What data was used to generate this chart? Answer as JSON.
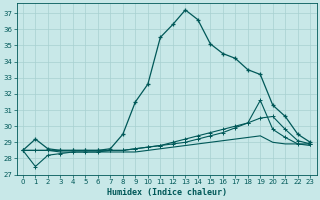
{
  "xlabel": "Humidex (Indice chaleur)",
  "bg_color": "#c8e8e8",
  "grid_color": "#a8d0d0",
  "line_color": "#005858",
  "xlim": [
    -0.5,
    23.5
  ],
  "ylim": [
    27,
    37.6
  ],
  "yticks": [
    27,
    28,
    29,
    30,
    31,
    32,
    33,
    34,
    35,
    36,
    37
  ],
  "xticks": [
    0,
    1,
    2,
    3,
    4,
    5,
    6,
    7,
    8,
    9,
    10,
    11,
    12,
    13,
    14,
    15,
    16,
    17,
    18,
    19,
    20,
    21,
    22,
    23
  ],
  "series": {
    "main": {
      "x": [
        0,
        1,
        2,
        3,
        4,
        5,
        6,
        7,
        8,
        9,
        10,
        11,
        12,
        13,
        14,
        15,
        16,
        17,
        18,
        19,
        20,
        21,
        22,
        23
      ],
      "y": [
        28.5,
        29.2,
        28.6,
        28.5,
        28.5,
        28.5,
        28.5,
        28.6,
        29.5,
        31.5,
        32.6,
        35.5,
        36.3,
        37.2,
        36.6,
        35.1,
        34.5,
        34.2,
        33.5,
        33.2,
        31.3,
        30.6,
        29.5,
        29.0
      ]
    },
    "line2": {
      "x": [
        0,
        1,
        2,
        3,
        4,
        5,
        6,
        7,
        8,
        9,
        10,
        11,
        12,
        13,
        14,
        15,
        16,
        17,
        18,
        19,
        20,
        21,
        22,
        23
      ],
      "y": [
        28.5,
        28.5,
        28.5,
        28.5,
        28.5,
        28.5,
        28.5,
        28.5,
        28.5,
        28.6,
        28.7,
        28.8,
        29.0,
        29.2,
        29.4,
        29.6,
        29.8,
        30.0,
        30.2,
        30.5,
        30.6,
        29.8,
        29.1,
        28.9
      ]
    },
    "line3": {
      "x": [
        0,
        1,
        2,
        3,
        4,
        5,
        6,
        7,
        8,
        9,
        10,
        11,
        12,
        13,
        14,
        15,
        16,
        17,
        18,
        19,
        20,
        21,
        22,
        23
      ],
      "y": [
        28.5,
        27.5,
        28.2,
        28.3,
        28.4,
        28.4,
        28.4,
        28.5,
        28.5,
        28.6,
        28.7,
        28.8,
        28.9,
        29.0,
        29.2,
        29.4,
        29.6,
        29.9,
        30.2,
        31.6,
        29.8,
        29.3,
        28.9,
        28.9
      ]
    },
    "line4": {
      "x": [
        0,
        1,
        2,
        3,
        4,
        5,
        6,
        7,
        8,
        9,
        10,
        11,
        12,
        13,
        14,
        15,
        16,
        17,
        18,
        19,
        20,
        21,
        22,
        23
      ],
      "y": [
        28.5,
        28.5,
        28.5,
        28.4,
        28.4,
        28.4,
        28.4,
        28.4,
        28.4,
        28.4,
        28.5,
        28.6,
        28.7,
        28.8,
        28.9,
        29.0,
        29.1,
        29.2,
        29.3,
        29.4,
        29.0,
        28.9,
        28.9,
        28.8
      ]
    }
  }
}
